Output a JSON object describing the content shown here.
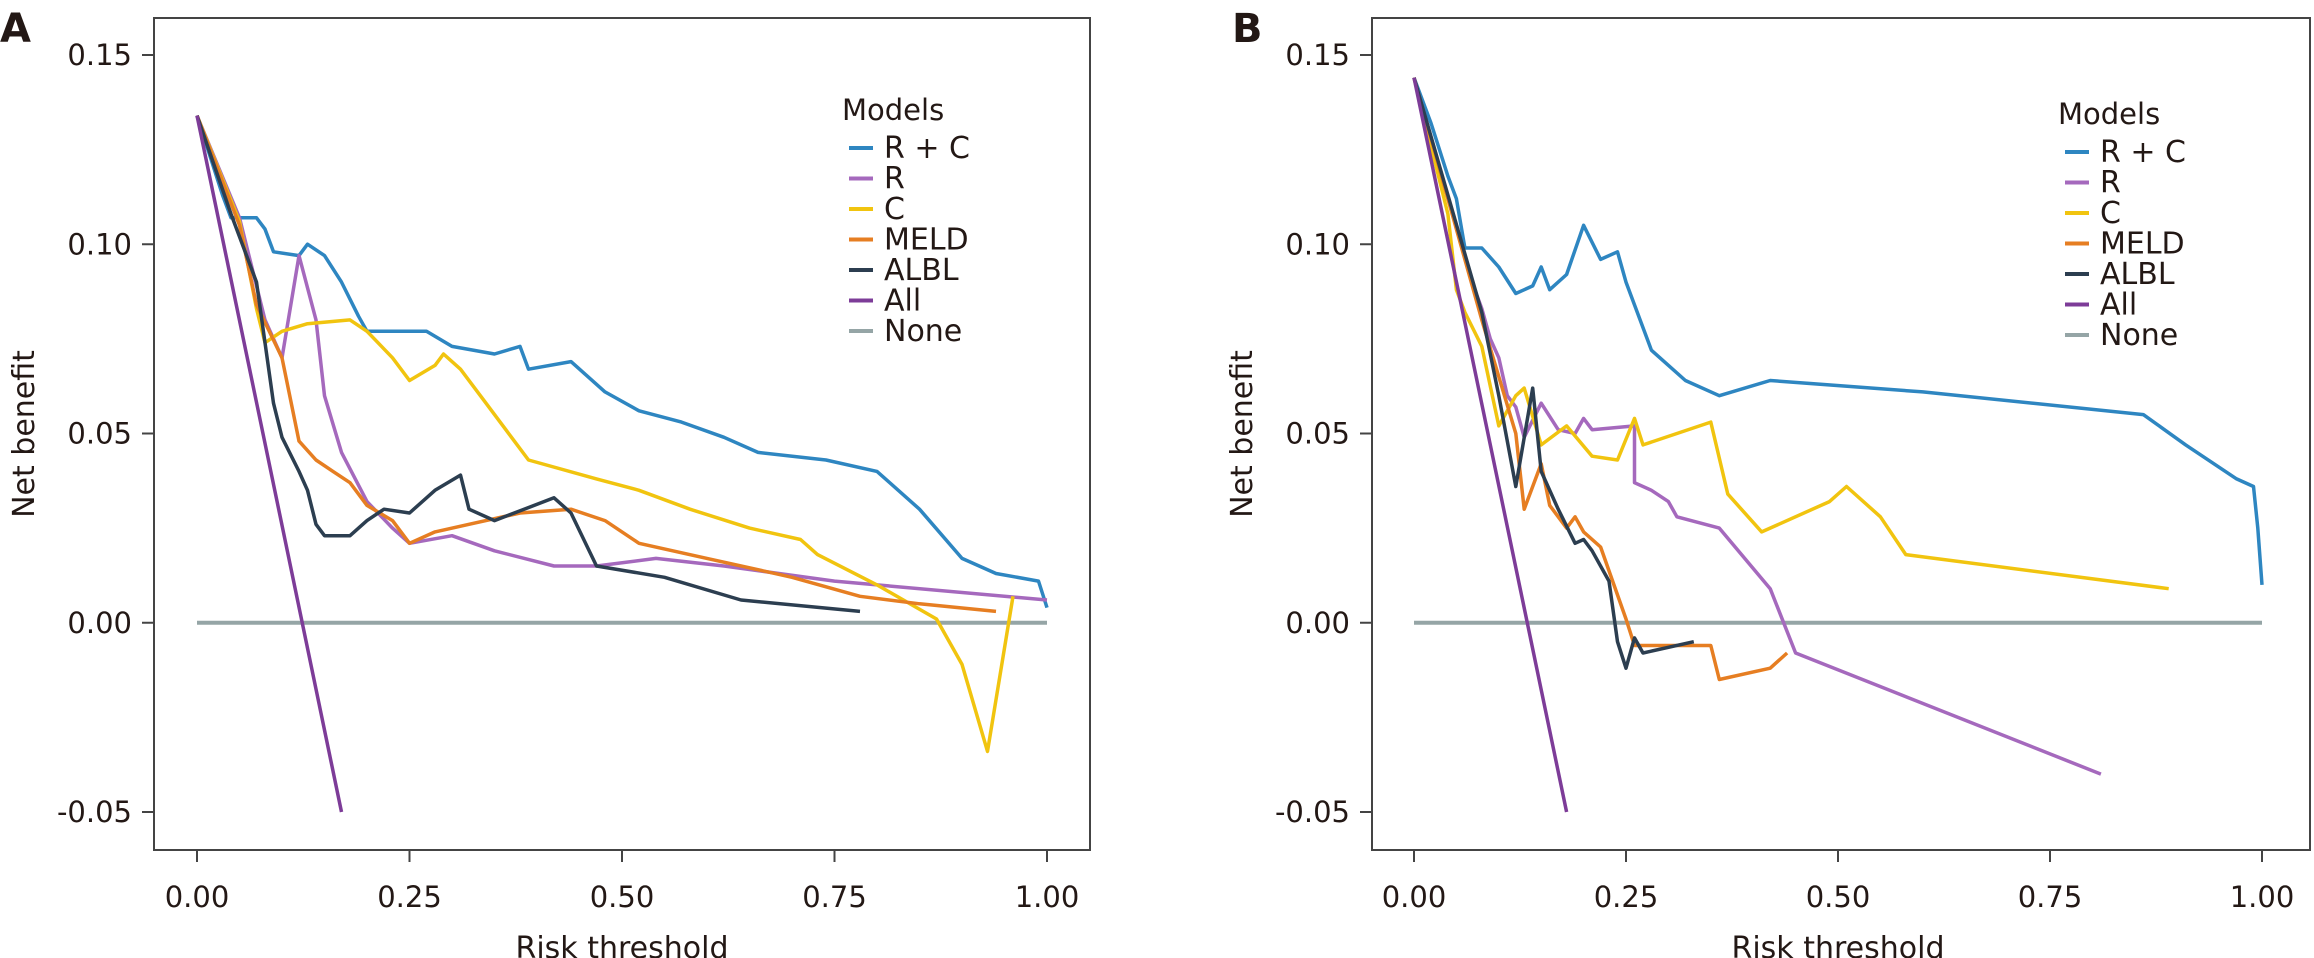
{
  "chart_data": [
    {
      "type": "line",
      "panel_label": "A",
      "xlabel": "Risk threshold",
      "ylabel": "Net benefit",
      "xlim": [
        -0.05,
        1.05
      ],
      "ylim": [
        -0.06,
        0.16
      ],
      "xticks": [
        0,
        0.25,
        0.5,
        0.75,
        1
      ],
      "xtick_labels": [
        "0.00",
        "0.25",
        "0.50",
        "0.75",
        "1.00"
      ],
      "yticks": [
        -0.05,
        0,
        0.05,
        0.1,
        0.15
      ],
      "ytick_labels": [
        "-0.05",
        "0.00",
        "0.05",
        "0.10",
        "0.15"
      ],
      "grid": false,
      "legend": {
        "title": "Models",
        "placement": "top-right"
      },
      "series": [
        {
          "name": "R + C",
          "color": "#2E86C1",
          "x": [
            0,
            0.03,
            0.04,
            0.07,
            0.08,
            0.09,
            0.12,
            0.13,
            0.15,
            0.17,
            0.19,
            0.2,
            0.27,
            0.3,
            0.35,
            0.38,
            0.39,
            0.44,
            0.48,
            0.52,
            0.57,
            0.62,
            0.66,
            0.74,
            0.8,
            0.85,
            0.9,
            0.94,
            0.99,
            1.0
          ],
          "y": [
            0.134,
            0.113,
            0.107,
            0.107,
            0.104,
            0.098,
            0.097,
            0.1,
            0.097,
            0.09,
            0.081,
            0.077,
            0.077,
            0.073,
            0.071,
            0.073,
            0.067,
            0.069,
            0.061,
            0.056,
            0.053,
            0.049,
            0.045,
            0.043,
            0.04,
            0.03,
            0.017,
            0.013,
            0.011,
            0.004
          ]
        },
        {
          "name": "R",
          "color": "#A569BD",
          "x": [
            0,
            0.05,
            0.08,
            0.1,
            0.12,
            0.14,
            0.15,
            0.17,
            0.2,
            0.23,
            0.25,
            0.3,
            0.35,
            0.42,
            0.47,
            0.54,
            0.62,
            0.75,
            1.0
          ],
          "y": [
            0.134,
            0.107,
            0.08,
            0.07,
            0.097,
            0.08,
            0.06,
            0.045,
            0.032,
            0.025,
            0.021,
            0.023,
            0.019,
            0.015,
            0.015,
            0.017,
            0.015,
            0.011,
            0.006
          ]
        },
        {
          "name": "C",
          "color": "#F1C40F",
          "x": [
            0,
            0.05,
            0.07,
            0.08,
            0.1,
            0.13,
            0.18,
            0.2,
            0.23,
            0.25,
            0.28,
            0.29,
            0.31,
            0.34,
            0.37,
            0.39,
            0.47,
            0.52,
            0.58,
            0.65,
            0.71,
            0.73,
            0.8,
            0.87,
            0.9,
            0.93,
            0.96
          ],
          "y": [
            0.134,
            0.106,
            0.083,
            0.074,
            0.077,
            0.079,
            0.08,
            0.077,
            0.07,
            0.064,
            0.068,
            0.071,
            0.067,
            0.058,
            0.049,
            0.043,
            0.038,
            0.035,
            0.03,
            0.025,
            0.022,
            0.018,
            0.01,
            0.001,
            -0.011,
            -0.034,
            0.007
          ]
        },
        {
          "name": "MELD",
          "color": "#E67E22",
          "x": [
            0,
            0.05,
            0.07,
            0.1,
            0.12,
            0.14,
            0.16,
            0.18,
            0.2,
            0.23,
            0.25,
            0.28,
            0.32,
            0.38,
            0.44,
            0.48,
            0.52,
            0.6,
            0.7,
            0.78,
            0.85,
            0.94
          ],
          "y": [
            0.134,
            0.105,
            0.084,
            0.07,
            0.048,
            0.043,
            0.04,
            0.037,
            0.031,
            0.027,
            0.021,
            0.024,
            0.026,
            0.029,
            0.03,
            0.027,
            0.021,
            0.017,
            0.012,
            0.007,
            0.005,
            0.003
          ]
        },
        {
          "name": "ALBL",
          "color": "#2C3E50",
          "x": [
            0,
            0.04,
            0.07,
            0.09,
            0.1,
            0.12,
            0.13,
            0.14,
            0.15,
            0.18,
            0.2,
            0.22,
            0.25,
            0.28,
            0.31,
            0.32,
            0.35,
            0.42,
            0.44,
            0.47,
            0.55,
            0.64,
            0.78
          ],
          "y": [
            0.134,
            0.108,
            0.09,
            0.058,
            0.049,
            0.04,
            0.035,
            0.026,
            0.023,
            0.023,
            0.027,
            0.03,
            0.029,
            0.035,
            0.039,
            0.03,
            0.027,
            0.033,
            0.029,
            0.015,
            0.012,
            0.006,
            0.003
          ]
        },
        {
          "name": "All",
          "color": "#7D3C98",
          "x": [
            0,
            0.17
          ],
          "y": [
            0.134,
            -0.05
          ]
        },
        {
          "name": "None",
          "color": "#95A5A6",
          "x": [
            0,
            1.0
          ],
          "y": [
            0,
            0
          ]
        }
      ]
    },
    {
      "type": "line",
      "panel_label": "B",
      "xlabel": "Risk threshold",
      "ylabel": "Net benefit",
      "xlim": [
        -0.05,
        1.05
      ],
      "ylim": [
        -0.06,
        0.16
      ],
      "xticks": [
        0,
        0.25,
        0.5,
        0.75,
        1
      ],
      "xtick_labels": [
        "0.00",
        "0.25",
        "0.50",
        "0.75",
        "1.00"
      ],
      "yticks": [
        -0.05,
        0,
        0.05,
        0.1,
        0.15
      ],
      "ytick_labels": [
        "-0.05",
        "0.00",
        "0.05",
        "0.10",
        "0.15"
      ],
      "grid": false,
      "legend": {
        "title": "Models",
        "placement": "top-right"
      },
      "series": [
        {
          "name": "R + C",
          "color": "#2E86C1",
          "x": [
            0,
            0.02,
            0.04,
            0.05,
            0.06,
            0.08,
            0.1,
            0.12,
            0.14,
            0.15,
            0.16,
            0.18,
            0.2,
            0.22,
            0.24,
            0.25,
            0.28,
            0.32,
            0.36,
            0.42,
            0.6,
            0.86,
            0.91,
            0.97,
            0.99,
            0.995,
            1.0
          ],
          "y": [
            0.144,
            0.132,
            0.118,
            0.112,
            0.099,
            0.099,
            0.094,
            0.087,
            0.089,
            0.094,
            0.088,
            0.092,
            0.105,
            0.096,
            0.098,
            0.09,
            0.072,
            0.064,
            0.06,
            0.064,
            0.061,
            0.055,
            0.047,
            0.038,
            0.036,
            0.025,
            0.01
          ]
        },
        {
          "name": "R",
          "color": "#A569BD",
          "x": [
            0,
            0.07,
            0.08,
            0.09,
            0.1,
            0.11,
            0.12,
            0.13,
            0.15,
            0.17,
            0.19,
            0.2,
            0.21,
            0.26,
            0.26,
            0.28,
            0.3,
            0.31,
            0.36,
            0.42,
            0.45,
            0.81
          ],
          "y": [
            0.144,
            0.089,
            0.083,
            0.075,
            0.07,
            0.06,
            0.057,
            0.049,
            0.058,
            0.051,
            0.05,
            0.054,
            0.051,
            0.052,
            0.037,
            0.035,
            0.032,
            0.028,
            0.025,
            0.009,
            -0.008,
            -0.04
          ]
        },
        {
          "name": "C",
          "color": "#F1C40F",
          "x": [
            0,
            0.04,
            0.05,
            0.06,
            0.08,
            0.1,
            0.12,
            0.13,
            0.15,
            0.18,
            0.21,
            0.24,
            0.26,
            0.27,
            0.35,
            0.37,
            0.41,
            0.49,
            0.51,
            0.55,
            0.58,
            0.89
          ],
          "y": [
            0.144,
            0.108,
            0.088,
            0.082,
            0.073,
            0.052,
            0.06,
            0.062,
            0.047,
            0.052,
            0.044,
            0.043,
            0.054,
            0.047,
            0.053,
            0.034,
            0.024,
            0.032,
            0.036,
            0.028,
            0.018,
            0.009
          ]
        },
        {
          "name": "MELD",
          "color": "#E67E22",
          "x": [
            0,
            0.08,
            0.1,
            0.12,
            0.13,
            0.15,
            0.16,
            0.18,
            0.19,
            0.2,
            0.22,
            0.25,
            0.26,
            0.35,
            0.36,
            0.42,
            0.44
          ],
          "y": [
            0.144,
            0.08,
            0.065,
            0.05,
            0.03,
            0.042,
            0.031,
            0.025,
            0.028,
            0.024,
            0.02,
            0.001,
            -0.006,
            -0.006,
            -0.015,
            -0.012,
            -0.008
          ]
        },
        {
          "name": "ALBL",
          "color": "#2C3E50",
          "x": [
            0,
            0.08,
            0.1,
            0.12,
            0.14,
            0.15,
            0.17,
            0.19,
            0.2,
            0.21,
            0.23,
            0.24,
            0.25,
            0.26,
            0.27,
            0.33
          ],
          "y": [
            0.144,
            0.082,
            0.06,
            0.036,
            0.062,
            0.04,
            0.03,
            0.021,
            0.022,
            0.019,
            0.011,
            -0.005,
            -0.012,
            -0.004,
            -0.008,
            -0.005
          ]
        },
        {
          "name": "All",
          "color": "#7D3C98",
          "x": [
            0,
            0.18
          ],
          "y": [
            0.144,
            -0.05
          ]
        },
        {
          "name": "None",
          "color": "#95A5A6",
          "x": [
            0,
            1.0
          ],
          "y": [
            0,
            0
          ]
        }
      ]
    }
  ]
}
